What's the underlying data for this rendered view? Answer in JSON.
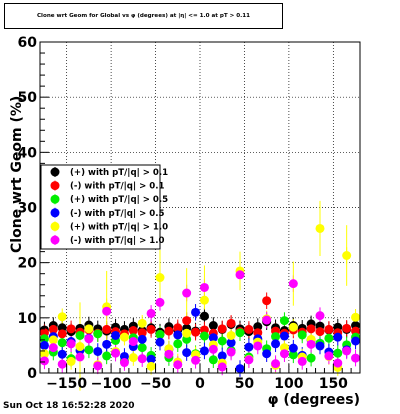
{
  "header": {
    "title": "Clone wrt Geom for Global vs φ (degrees) at |η| <= 1.0 at pT > 0.11"
  },
  "footer": {
    "datestamp": "Sun Oct 18 16:52:28 2020"
  },
  "chart_data": {
    "type": "scatter",
    "title": "Clone wrt Geom for Global vs φ (degrees) at |η| <= 1.0 at pT > 0.11",
    "xlabel": "φ (degrees)",
    "ylabel": "Clone wrt Geom (%)",
    "xlim": [
      -180,
      180
    ],
    "ylim": [
      0,
      60
    ],
    "x_ticks": [
      -150,
      -100,
      -50,
      0,
      50,
      100,
      150
    ],
    "x_tick_labels": [
      "−150",
      "−100",
      "−50",
      "0",
      "50",
      "100",
      "150"
    ],
    "y_ticks": [
      0,
      10,
      20,
      30,
      40,
      50,
      60
    ],
    "y_tick_labels": [
      "0",
      "10",
      "20",
      "30",
      "40",
      "50",
      "60"
    ],
    "grid": true,
    "legend_position": "left",
    "series": [
      {
        "name": "(+) with pT/|q| > 0.1",
        "color": "#000000",
        "points": [
          [
            -175,
            7.8
          ],
          [
            -165,
            8.6
          ],
          [
            -155,
            8.2
          ],
          [
            -145,
            7.5
          ],
          [
            -135,
            8.1
          ],
          [
            -125,
            8.7
          ],
          [
            -115,
            8.0
          ],
          [
            -105,
            7.6
          ],
          [
            -95,
            8.3
          ],
          [
            -85,
            7.9
          ],
          [
            -75,
            8.5
          ],
          [
            -65,
            7.7
          ],
          [
            -55,
            8.2
          ],
          [
            -45,
            7.4
          ],
          [
            -35,
            8.4
          ],
          [
            -25,
            7.8
          ],
          [
            -15,
            8.1
          ],
          [
            -5,
            7.6
          ],
          [
            5,
            10.3
          ],
          [
            15,
            8.6
          ],
          [
            25,
            7.9
          ],
          [
            35,
            8.8
          ],
          [
            45,
            8.0
          ],
          [
            55,
            7.5
          ],
          [
            65,
            8.4
          ],
          [
            75,
            9.3
          ],
          [
            85,
            8.2
          ],
          [
            95,
            7.7
          ],
          [
            105,
            8.6
          ],
          [
            115,
            8.1
          ],
          [
            125,
            8.9
          ],
          [
            135,
            8.5
          ],
          [
            145,
            7.8
          ],
          [
            155,
            8.3
          ],
          [
            165,
            7.9
          ],
          [
            175,
            8.6
          ]
        ]
      },
      {
        "name": "(-) with pT/|q| > 0.1",
        "color": "#ff0000",
        "points": [
          [
            -175,
            7.3
          ],
          [
            -165,
            7.9
          ],
          [
            -155,
            7.1
          ],
          [
            -145,
            8.0
          ],
          [
            -135,
            7.4
          ],
          [
            -125,
            7.8
          ],
          [
            -115,
            7.2
          ],
          [
            -105,
            7.9
          ],
          [
            -95,
            7.5
          ],
          [
            -85,
            7.1
          ],
          [
            -75,
            7.7
          ],
          [
            -65,
            7.3
          ],
          [
            -55,
            7.9
          ],
          [
            -45,
            7.0
          ],
          [
            -35,
            7.6
          ],
          [
            -25,
            8.2
          ],
          [
            -15,
            9.5
          ],
          [
            -5,
            7.4
          ],
          [
            5,
            7.8
          ],
          [
            15,
            7.2
          ],
          [
            25,
            8.0
          ],
          [
            35,
            9.0
          ],
          [
            45,
            7.5
          ],
          [
            55,
            7.9
          ],
          [
            65,
            7.3
          ],
          [
            75,
            13.1
          ],
          [
            85,
            7.6
          ],
          [
            95,
            7.2
          ],
          [
            105,
            7.8
          ],
          [
            115,
            7.4
          ],
          [
            125,
            8.0
          ],
          [
            135,
            7.5
          ],
          [
            145,
            7.9
          ],
          [
            155,
            7.3
          ],
          [
            165,
            8.1
          ],
          [
            175,
            7.6
          ]
        ]
      },
      {
        "name": "(+) with pT/|q| > 0.5",
        "color": "#00ee00",
        "points": [
          [
            -175,
            6.2
          ],
          [
            -165,
            3.8
          ],
          [
            -155,
            5.5
          ],
          [
            -145,
            2.6
          ],
          [
            -135,
            6.8
          ],
          [
            -125,
            4.2
          ],
          [
            -115,
            7.1
          ],
          [
            -105,
            3.1
          ],
          [
            -95,
            5.9
          ],
          [
            -85,
            2.2
          ],
          [
            -75,
            6.4
          ],
          [
            -65,
            4.6
          ],
          [
            -55,
            3.2
          ],
          [
            -45,
            7.0
          ],
          [
            -35,
            2.8
          ],
          [
            -25,
            5.3
          ],
          [
            -15,
            6.1
          ],
          [
            -5,
            3.5
          ],
          [
            5,
            6.7
          ],
          [
            15,
            2.4
          ],
          [
            25,
            5.8
          ],
          [
            35,
            4.1
          ],
          [
            45,
            7.3
          ],
          [
            55,
            2.9
          ],
          [
            65,
            6.0
          ],
          [
            75,
            4.4
          ],
          [
            85,
            6.6
          ],
          [
            95,
            9.5
          ],
          [
            105,
            3.3
          ],
          [
            115,
            6.9
          ],
          [
            125,
            2.7
          ],
          [
            135,
            5.4
          ],
          [
            145,
            6.3
          ],
          [
            155,
            3.6
          ],
          [
            165,
            5.1
          ],
          [
            175,
            6.5
          ]
        ]
      },
      {
        "name": "(-) with pT/|q| > 0.5",
        "color": "#0000ff",
        "points": [
          [
            -175,
            5.0
          ],
          [
            -165,
            6.6
          ],
          [
            -155,
            3.4
          ],
          [
            -145,
            5.7
          ],
          [
            -135,
            4.1
          ],
          [
            -125,
            6.3
          ],
          [
            -115,
            3.9
          ],
          [
            -105,
            5.2
          ],
          [
            -95,
            6.8
          ],
          [
            -85,
            3.0
          ],
          [
            -75,
            4.8
          ],
          [
            -65,
            6.1
          ],
          [
            -55,
            2.5
          ],
          [
            -45,
            5.6
          ],
          [
            -35,
            4.3
          ],
          [
            -25,
            6.9
          ],
          [
            -15,
            3.7
          ],
          [
            -5,
            11.0
          ],
          [
            5,
            4.0
          ],
          [
            15,
            6.4
          ],
          [
            25,
            3.1
          ],
          [
            35,
            5.5
          ],
          [
            45,
            0.8
          ],
          [
            55,
            4.7
          ],
          [
            65,
            6.2
          ],
          [
            75,
            3.5
          ],
          [
            85,
            5.3
          ],
          [
            95,
            6.7
          ],
          [
            105,
            4.5
          ],
          [
            115,
            3.2
          ],
          [
            125,
            6.0
          ],
          [
            135,
            4.9
          ],
          [
            145,
            3.8
          ],
          [
            155,
            6.5
          ],
          [
            165,
            4.2
          ],
          [
            175,
            5.8
          ]
        ]
      },
      {
        "name": "(+) with pT/|q| > 1.0",
        "color": "#ffff00",
        "points": [
          [
            -175,
            3.5
          ],
          [
            -165,
            6.0
          ],
          [
            -155,
            10.2
          ],
          [
            -145,
            2.1
          ],
          [
            -135,
            4.8
          ],
          [
            -125,
            8.0
          ],
          [
            -115,
            1.5
          ],
          [
            -105,
            12.0
          ],
          [
            -95,
            3.9
          ],
          [
            -85,
            6.5
          ],
          [
            -75,
            2.8
          ],
          [
            -65,
            9.0
          ],
          [
            -55,
            1.2
          ],
          [
            -45,
            17.3
          ],
          [
            -35,
            4.4
          ],
          [
            -25,
            2.0
          ],
          [
            -15,
            7.2
          ],
          [
            -5,
            3.3
          ],
          [
            5,
            13.2
          ],
          [
            15,
            5.1
          ],
          [
            25,
            1.8
          ],
          [
            35,
            6.8
          ],
          [
            45,
            18.5
          ],
          [
            55,
            2.5
          ],
          [
            65,
            5.6
          ],
          [
            75,
            9.8
          ],
          [
            85,
            1.4
          ],
          [
            95,
            4.6
          ],
          [
            105,
            8.3
          ],
          [
            115,
            2.9
          ],
          [
            125,
            6.1
          ],
          [
            135,
            26.2
          ],
          [
            145,
            3.0
          ],
          [
            155,
            1.0
          ],
          [
            165,
            21.3
          ],
          [
            175,
            10.1
          ]
        ]
      },
      {
        "name": "(-) with pT/|q| > 1.0",
        "color": "#ff00ff",
        "points": [
          [
            -175,
            2.2
          ],
          [
            -165,
            4.6
          ],
          [
            -155,
            1.6
          ],
          [
            -145,
            5.3
          ],
          [
            -135,
            2.9
          ],
          [
            -125,
            6.2
          ],
          [
            -115,
            1.3
          ],
          [
            -105,
            11.2
          ],
          [
            -95,
            3.6
          ],
          [
            -85,
            1.9
          ],
          [
            -75,
            5.7
          ],
          [
            -65,
            2.6
          ],
          [
            -55,
            10.8
          ],
          [
            -45,
            12.8
          ],
          [
            -35,
            3.4
          ],
          [
            -25,
            1.5
          ],
          [
            -15,
            14.5
          ],
          [
            -5,
            2.3
          ],
          [
            5,
            15.5
          ],
          [
            15,
            4.3
          ],
          [
            25,
            1.1
          ],
          [
            35,
            3.8
          ],
          [
            45,
            17.8
          ],
          [
            55,
            2.4
          ],
          [
            65,
            4.9
          ],
          [
            75,
            9.6
          ],
          [
            85,
            1.7
          ],
          [
            95,
            3.5
          ],
          [
            105,
            16.2
          ],
          [
            115,
            2.1
          ],
          [
            125,
            5.2
          ],
          [
            135,
            10.4
          ],
          [
            145,
            3.1
          ],
          [
            155,
            1.8
          ],
          [
            165,
            4.0
          ],
          [
            175,
            2.7
          ]
        ]
      }
    ],
    "highlight_error_bars": [
      {
        "x": -105,
        "y": 12.0,
        "err": 6.5
      },
      {
        "x": -45,
        "y": 17.3,
        "err": 5.0
      },
      {
        "x": -15,
        "y": 14.5,
        "err": 4.5
      },
      {
        "x": 5,
        "y": 15.5,
        "err": 4.0
      },
      {
        "x": 45,
        "y": 18.5,
        "err": 3.5
      },
      {
        "x": 105,
        "y": 16.2,
        "err": 4.0
      },
      {
        "x": 135,
        "y": 26.2,
        "err": 5.0
      },
      {
        "x": 165,
        "y": 21.3,
        "err": 5.5
      },
      {
        "x": -135,
        "y": 4.8,
        "err": 8.0
      }
    ]
  }
}
